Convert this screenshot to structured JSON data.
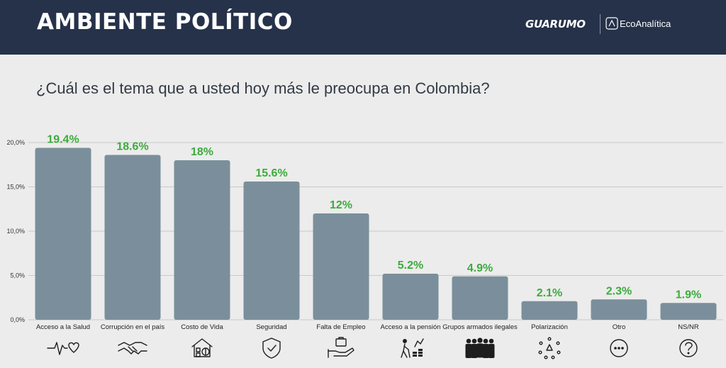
{
  "header": {
    "title": "AMBIENTE POLÍTICO",
    "brand_primary": "GUARUMO",
    "brand_secondary": "EcoAnalítica"
  },
  "question": "¿Cuál es el tema que a usted hoy más le preocupa en Colombia?",
  "colors": {
    "header_bg": "#26324a",
    "bar": "#7a8f9b",
    "value_label": "#3dab3d",
    "background": "#ececec"
  },
  "chart_data": {
    "type": "bar",
    "categories": [
      "Acceso a la Salud",
      "Corrupción en el país",
      "Costo de Vida",
      "Seguridad",
      "Falta de Empleo",
      "Acceso a la pensión",
      "Grupos armados ilegales",
      "Polarización",
      "Otro",
      "NS/NR"
    ],
    "values": [
      19.4,
      18.6,
      18,
      15.6,
      12,
      5.2,
      4.9,
      2.1,
      2.3,
      1.9
    ],
    "value_labels": [
      "19.4%",
      "18.6%",
      "18%",
      "15.6%",
      "12%",
      "5.2%",
      "4.9%",
      "2.1%",
      "2.3%",
      "1.9%"
    ],
    "ylim": [
      0,
      20
    ],
    "yticks": [
      0,
      5,
      10,
      15,
      20
    ],
    "ytick_labels": [
      "0,0%",
      "5,0%",
      "10,0%",
      "15,0%",
      "20,0%"
    ],
    "grid": true,
    "icons": [
      "heartbeat-icon",
      "handshake-icon",
      "house-money-icon",
      "shield-check-icon",
      "briefcase-hand-icon",
      "elderly-coins-icon",
      "armed-group-icon",
      "polarization-icon",
      "more-dots-icon",
      "question-circle-icon"
    ]
  }
}
